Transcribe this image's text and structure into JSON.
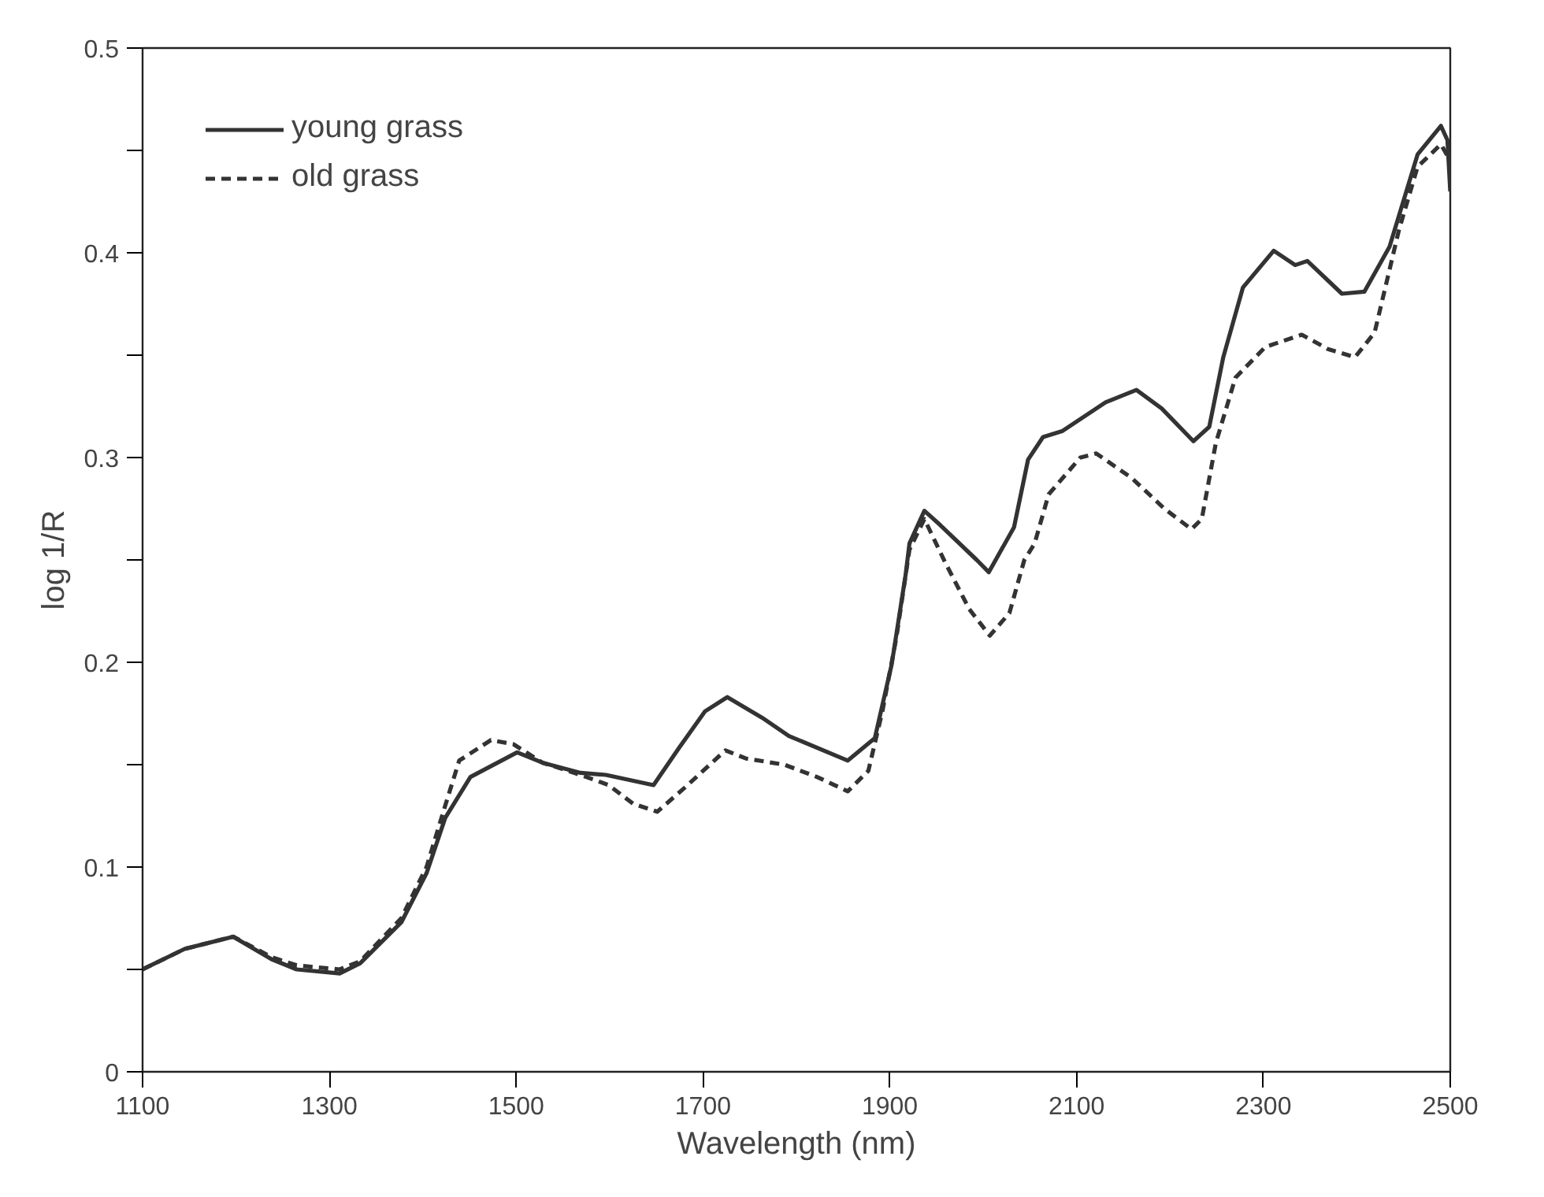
{
  "chart_data": {
    "type": "line",
    "xlabel": "Wavelength (nm)",
    "ylabel": "log 1/R",
    "xlim": [
      1100,
      2500
    ],
    "ylim": [
      0,
      0.5
    ],
    "xticks": [
      1100,
      1300,
      1500,
      1700,
      1900,
      2100,
      2300,
      2500
    ],
    "yticks": [
      0,
      {
        "value": 0.05,
        "label": null
      },
      0.1,
      {
        "value": 0.15,
        "label": null
      },
      0.2,
      {
        "value": 0.25,
        "label": null
      },
      0.3,
      {
        "value": 0.35,
        "label": null
      },
      0.4,
      {
        "value": 0.45,
        "label": null
      },
      0.5
    ],
    "grid": false,
    "legend": "top left",
    "marker": "none",
    "series": [
      {
        "name": "young grass",
        "color": "#333333",
        "line_style": "solid",
        "x": [
          1100,
          1145,
          1197,
          1238,
          1265,
          1311,
          1333,
          1377,
          1404,
          1424,
          1451,
          1501,
          1528,
          1569,
          1596,
          1647,
          1674,
          1702,
          1726,
          1763,
          1792,
          1855,
          1884,
          1902,
          1917,
          1921,
          1937,
          1954,
          1993,
          2006,
          2033,
          2048,
          2064,
          2085,
          2131,
          2164,
          2191,
          2225,
          2242,
          2257,
          2278,
          2311,
          2334,
          2347,
          2384,
          2408,
          2435,
          2465,
          2490,
          2497,
          2500
        ],
        "values": [
          0.05,
          0.06,
          0.066,
          0.055,
          0.05,
          0.048,
          0.053,
          0.073,
          0.097,
          0.124,
          0.144,
          0.156,
          0.151,
          0.146,
          0.145,
          0.14,
          0.158,
          0.176,
          0.183,
          0.173,
          0.164,
          0.152,
          0.163,
          0.199,
          0.243,
          0.258,
          0.274,
          0.267,
          0.25,
          0.244,
          0.266,
          0.299,
          0.31,
          0.313,
          0.327,
          0.333,
          0.324,
          0.308,
          0.315,
          0.349,
          0.383,
          0.401,
          0.394,
          0.396,
          0.38,
          0.381,
          0.403,
          0.448,
          0.462,
          0.455,
          0.43
        ]
      },
      {
        "name": "old grass",
        "color": "#333333",
        "line_style": "dashed",
        "x": [
          1100,
          1145,
          1197,
          1238,
          1265,
          1311,
          1333,
          1377,
          1404,
          1424,
          1439,
          1473,
          1497,
          1528,
          1569,
          1599,
          1625,
          1651,
          1681,
          1724,
          1746,
          1787,
          1822,
          1855,
          1877,
          1892,
          1907,
          1921,
          1937,
          1959,
          1985,
          2007,
          2028,
          2044,
          2055,
          2070,
          2104,
          2121,
          2159,
          2194,
          2223,
          2234,
          2249,
          2270,
          2302,
          2341,
          2369,
          2398,
          2419,
          2445,
          2465,
          2490,
          2500
        ],
        "values": [
          0.05,
          0.06,
          0.066,
          0.056,
          0.052,
          0.05,
          0.054,
          0.075,
          0.1,
          0.13,
          0.152,
          0.162,
          0.16,
          0.151,
          0.145,
          0.14,
          0.131,
          0.127,
          0.139,
          0.157,
          0.153,
          0.15,
          0.144,
          0.137,
          0.147,
          0.176,
          0.212,
          0.255,
          0.27,
          0.249,
          0.226,
          0.213,
          0.224,
          0.25,
          0.258,
          0.282,
          0.3,
          0.302,
          0.29,
          0.275,
          0.265,
          0.27,
          0.307,
          0.339,
          0.354,
          0.36,
          0.353,
          0.349,
          0.361,
          0.411,
          0.442,
          0.453,
          0.445
        ]
      }
    ]
  }
}
